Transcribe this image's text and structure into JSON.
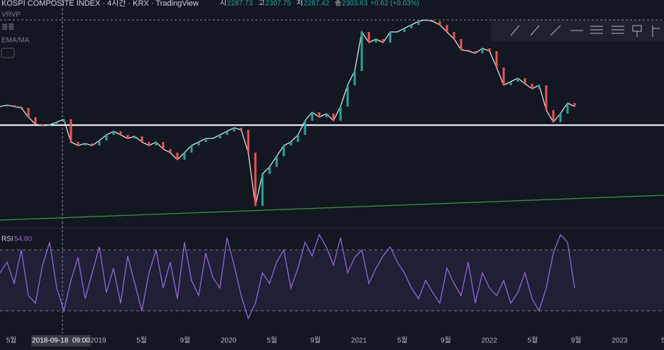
{
  "header": {
    "symbol": "KOSPI COMPOSITE INDEX · 4시간 · KRX · TradingView",
    "ohlc": [
      {
        "label": "시",
        "value": "2287.73"
      },
      {
        "label": "고",
        "value": "2307.75"
      },
      {
        "label": "저",
        "value": "2287.42"
      },
      {
        "label": "종",
        "value": "2303.63"
      }
    ],
    "change": "+0.62 (+0.03%)"
  },
  "indicators": [
    "VRVP",
    "볼륨",
    "EMA/MA"
  ],
  "price_chart": {
    "type": "line",
    "ylim": [
      1286,
      3526
    ],
    "values": [
      2476,
      2490,
      2476,
      2462,
      2371,
      2301,
      2287,
      2294,
      2322,
      2350,
      2126,
      2091,
      2112,
      2091,
      2140,
      2196,
      2231,
      2196,
      2161,
      2182,
      2126,
      2091,
      2126,
      2056,
      2021,
      1951,
      2021,
      2091,
      2126,
      2161,
      2161,
      2196,
      2231,
      2266,
      2245,
      2021,
      1496,
      1811,
      1881,
      1986,
      2091,
      2126,
      2196,
      2336,
      2420,
      2371,
      2406,
      2336,
      2476,
      2686,
      2826,
      3211,
      3106,
      3141,
      3106,
      3211,
      3211,
      3246,
      3281,
      3316,
      3330,
      3316,
      3281,
      3211,
      3141,
      3036,
      3022,
      3001,
      3050,
      3022,
      2861,
      2686,
      2721,
      2756,
      2700,
      2651,
      2686,
      2441,
      2322,
      2406,
      2511,
      2476
    ],
    "color": "#e0e0e0",
    "support_line": 2292,
    "high_line": 3330,
    "trend_line": [
      1356,
      1601
    ]
  },
  "rsi_chart": {
    "type": "line",
    "label": "RSI",
    "last": "54.80",
    "ylim": [
      15,
      84
    ],
    "levels": [
      30,
      70
    ],
    "color": "#8e6ad8",
    "values": [
      55,
      62,
      48,
      70,
      40,
      35,
      60,
      75,
      45,
      30,
      50,
      65,
      38,
      55,
      72,
      42,
      58,
      35,
      66,
      48,
      30,
      55,
      70,
      45,
      62,
      38,
      75,
      50,
      40,
      68,
      52,
      45,
      78,
      60,
      40,
      25,
      35,
      55,
      48,
      62,
      70,
      45,
      58,
      75,
      66,
      80,
      72,
      60,
      78,
      55,
      65,
      70,
      48,
      58,
      66,
      72,
      62,
      55,
      45,
      38,
      50,
      42,
      35,
      58,
      48,
      40,
      62,
      35,
      55,
      45,
      40,
      50,
      35,
      42,
      55,
      38,
      30,
      45,
      68,
      80,
      75,
      45
    ]
  },
  "time_axis": {
    "categories": [
      "5월",
      null,
      "2019",
      "5월",
      "9월",
      "2020",
      "5월",
      "9월",
      "2021",
      "5월",
      "9월",
      "2022",
      "5월",
      "9월",
      "2023",
      "5"
    ],
    "crosshair_label": "2018-09-18  09:00"
  }
}
